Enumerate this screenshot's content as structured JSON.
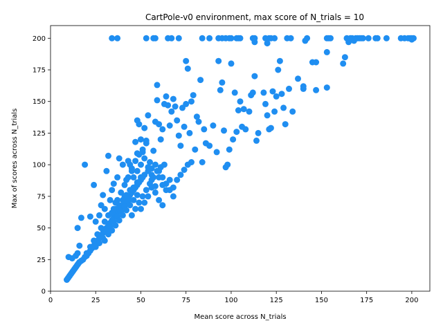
{
  "chart_data": {
    "type": "scatter",
    "title": "CartPole-v0 environment, max score of N_trials = 10",
    "xlabel": "Mean score across N_trials",
    "ylabel": "Max of scores across N_trials",
    "xlim": [
      0,
      210
    ],
    "ylim": [
      0,
      210
    ],
    "xticks": [
      0,
      25,
      50,
      75,
      100,
      125,
      150,
      175,
      200
    ],
    "yticks": [
      0,
      25,
      50,
      75,
      100,
      125,
      150,
      175,
      200
    ],
    "grid": false,
    "marker_color": "#1f8ef1",
    "series": [
      {
        "points": [
          [
            9,
            9
          ],
          [
            9.5,
            10
          ],
          [
            10,
            11
          ],
          [
            10.5,
            12
          ],
          [
            11,
            13
          ],
          [
            11.5,
            14
          ],
          [
            12,
            15
          ],
          [
            12.5,
            16
          ],
          [
            13,
            17
          ],
          [
            13.5,
            18
          ],
          [
            14,
            19
          ],
          [
            14.5,
            20
          ],
          [
            15,
            21
          ],
          [
            15.5,
            22
          ],
          [
            16,
            23
          ],
          [
            17,
            24
          ],
          [
            18,
            25
          ],
          [
            19,
            27
          ],
          [
            20,
            28
          ],
          [
            21,
            30
          ],
          [
            22,
            32
          ],
          [
            23,
            34
          ],
          [
            24,
            36
          ],
          [
            25,
            38
          ],
          [
            26,
            40
          ],
          [
            27,
            42
          ],
          [
            28,
            44
          ],
          [
            29,
            46
          ],
          [
            30,
            48
          ],
          [
            31,
            50
          ],
          [
            32,
            52
          ],
          [
            33,
            54
          ],
          [
            34,
            56
          ],
          [
            35,
            58
          ],
          [
            36,
            60
          ],
          [
            37,
            62
          ],
          [
            38,
            64
          ],
          [
            39,
            66
          ],
          [
            40,
            68
          ],
          [
            41,
            70
          ],
          [
            42,
            72
          ],
          [
            43,
            74
          ],
          [
            44,
            76
          ],
          [
            45,
            78
          ],
          [
            46,
            80
          ],
          [
            47,
            82
          ],
          [
            48,
            84
          ],
          [
            49,
            86
          ],
          [
            50,
            88
          ],
          [
            51,
            90
          ],
          [
            10,
            27
          ],
          [
            12,
            26
          ],
          [
            14,
            28
          ],
          [
            15,
            30
          ],
          [
            16,
            36
          ],
          [
            15,
            50
          ],
          [
            17,
            58
          ],
          [
            19,
            100
          ],
          [
            22,
            59
          ],
          [
            24,
            84
          ],
          [
            25,
            55
          ],
          [
            27,
            60
          ],
          [
            28,
            68
          ],
          [
            29,
            76
          ],
          [
            30,
            65
          ],
          [
            31,
            95
          ],
          [
            32,
            107
          ],
          [
            33,
            72
          ],
          [
            34,
            80
          ],
          [
            35,
            85
          ],
          [
            36,
            70
          ],
          [
            37,
            90
          ],
          [
            38,
            105
          ],
          [
            40,
            100
          ],
          [
            41,
            75
          ],
          [
            42,
            88
          ],
          [
            43,
            103
          ],
          [
            45,
            95
          ],
          [
            46,
            80
          ],
          [
            47,
            118
          ],
          [
            48,
            109
          ],
          [
            48,
            135
          ],
          [
            49,
            132
          ],
          [
            50,
            120
          ],
          [
            51,
            110
          ],
          [
            52,
            129
          ],
          [
            53,
            119
          ],
          [
            54,
            139
          ],
          [
            55,
            102
          ],
          [
            56,
            92
          ],
          [
            57,
            111
          ],
          [
            58,
            134
          ],
          [
            59,
            151
          ],
          [
            59,
            163
          ],
          [
            60,
            132
          ],
          [
            61,
            120
          ],
          [
            62,
            128
          ],
          [
            63,
            148
          ],
          [
            64,
            154
          ],
          [
            65,
            147
          ],
          [
            66,
            131
          ],
          [
            67,
            142
          ],
          [
            68,
            152
          ],
          [
            69,
            146
          ],
          [
            70,
            135
          ],
          [
            71,
            123
          ],
          [
            72,
            115
          ],
          [
            73,
            145
          ],
          [
            74,
            130
          ],
          [
            75,
            148
          ],
          [
            75,
            182
          ],
          [
            76,
            176
          ],
          [
            77,
            125
          ],
          [
            78,
            150
          ],
          [
            79,
            155
          ],
          [
            80,
            112
          ],
          [
            81,
            138
          ],
          [
            82,
            134
          ],
          [
            83,
            167
          ],
          [
            84,
            102
          ],
          [
            85,
            128
          ],
          [
            86,
            117
          ],
          [
            88,
            115
          ],
          [
            90,
            131
          ],
          [
            92,
            110
          ],
          [
            93,
            182
          ],
          [
            94,
            159
          ],
          [
            95,
            165
          ],
          [
            96,
            127
          ],
          [
            97,
            98
          ],
          [
            98,
            100
          ],
          [
            99,
            112
          ],
          [
            100,
            180
          ],
          [
            101,
            120
          ],
          [
            102,
            157
          ],
          [
            103,
            126
          ],
          [
            104,
            143
          ],
          [
            105,
            150
          ],
          [
            106,
            130
          ],
          [
            107,
            144
          ],
          [
            108,
            128
          ],
          [
            110,
            142
          ],
          [
            111,
            155
          ],
          [
            112,
            157
          ],
          [
            113,
            170
          ],
          [
            114,
            119
          ],
          [
            115,
            125
          ],
          [
            118,
            157
          ],
          [
            119,
            148
          ],
          [
            120,
            139
          ],
          [
            121,
            128
          ],
          [
            122,
            129
          ],
          [
            123,
            158
          ],
          [
            124,
            142
          ],
          [
            125,
            154
          ],
          [
            126,
            175
          ],
          [
            127,
            182
          ],
          [
            128,
            156
          ],
          [
            129,
            145
          ],
          [
            130,
            132
          ],
          [
            132,
            160
          ],
          [
            134,
            142
          ],
          [
            137,
            168
          ],
          [
            140,
            162
          ],
          [
            140,
            160
          ],
          [
            145,
            181
          ],
          [
            147,
            181
          ],
          [
            147,
            159
          ],
          [
            153,
            161
          ],
          [
            153,
            189
          ],
          [
            162,
            180
          ],
          [
            163,
            185
          ],
          [
            34,
            200
          ],
          [
            37,
            200
          ],
          [
            53,
            200
          ],
          [
            57,
            200
          ],
          [
            58,
            200
          ],
          [
            65,
            200
          ],
          [
            67,
            200
          ],
          [
            71,
            200
          ],
          [
            84,
            200
          ],
          [
            88,
            200
          ],
          [
            93,
            200
          ],
          [
            95,
            200
          ],
          [
            97,
            200
          ],
          [
            99,
            200
          ],
          [
            100,
            200
          ],
          [
            103,
            200
          ],
          [
            104,
            200
          ],
          [
            105,
            200
          ],
          [
            112,
            200
          ],
          [
            113,
            197
          ],
          [
            113,
            200
          ],
          [
            119,
            200
          ],
          [
            120,
            196
          ],
          [
            121,
            200
          ],
          [
            122,
            200
          ],
          [
            124,
            200
          ],
          [
            131,
            200
          ],
          [
            133,
            200
          ],
          [
            141,
            198
          ],
          [
            142,
            200
          ],
          [
            153,
            200
          ],
          [
            154,
            200
          ],
          [
            155,
            200
          ],
          [
            164,
            200
          ],
          [
            165,
            197
          ],
          [
            166,
            200
          ],
          [
            167,
            200
          ],
          [
            168,
            198
          ],
          [
            169,
            200
          ],
          [
            170,
            200
          ],
          [
            171,
            200
          ],
          [
            172,
            200
          ],
          [
            173,
            200
          ],
          [
            176,
            200
          ],
          [
            180,
            200
          ],
          [
            181,
            200
          ],
          [
            186,
            200
          ],
          [
            194,
            200
          ],
          [
            196,
            200
          ],
          [
            198,
            200
          ],
          [
            199,
            200
          ],
          [
            200,
            199
          ],
          [
            200,
            200
          ],
          [
            201,
            200
          ],
          [
            20,
            30
          ],
          [
            22,
            35
          ],
          [
            24,
            40
          ],
          [
            26,
            45
          ],
          [
            28,
            50
          ],
          [
            30,
            55
          ],
          [
            32,
            60
          ],
          [
            34,
            62
          ],
          [
            36,
            65
          ],
          [
            38,
            68
          ],
          [
            40,
            72
          ],
          [
            42,
            76
          ],
          [
            44,
            80
          ],
          [
            46,
            82
          ],
          [
            48,
            86
          ],
          [
            50,
            90
          ],
          [
            52,
            92
          ],
          [
            54,
            95
          ],
          [
            56,
            97
          ],
          [
            58,
            100
          ],
          [
            60,
            95
          ],
          [
            62,
            90
          ],
          [
            64,
            85
          ],
          [
            66,
            80
          ],
          [
            68,
            75
          ],
          [
            70,
            88
          ],
          [
            72,
            92
          ],
          [
            74,
            96
          ],
          [
            76,
            100
          ],
          [
            78,
            102
          ],
          [
            25,
            35
          ],
          [
            27,
            38
          ],
          [
            29,
            42
          ],
          [
            31,
            47
          ],
          [
            33,
            51
          ],
          [
            35,
            55
          ],
          [
            37,
            59
          ],
          [
            39,
            63
          ],
          [
            41,
            67
          ],
          [
            43,
            71
          ],
          [
            45,
            60
          ],
          [
            47,
            65
          ],
          [
            49,
            70
          ],
          [
            51,
            75
          ],
          [
            53,
            80
          ],
          [
            55,
            85
          ],
          [
            57,
            90
          ],
          [
            59,
            95
          ],
          [
            61,
            98
          ],
          [
            63,
            100
          ],
          [
            30,
            40
          ],
          [
            32,
            45
          ],
          [
            34,
            48
          ],
          [
            36,
            52
          ],
          [
            38,
            56
          ],
          [
            40,
            60
          ],
          [
            42,
            64
          ],
          [
            44,
            68
          ],
          [
            46,
            72
          ],
          [
            48,
            76
          ],
          [
            50,
            65
          ],
          [
            52,
            70
          ],
          [
            54,
            75
          ],
          [
            56,
            82
          ],
          [
            58,
            78
          ],
          [
            60,
            72
          ],
          [
            62,
            68
          ],
          [
            64,
            80
          ],
          [
            66,
            88
          ],
          [
            68,
            82
          ],
          [
            44,
            100
          ],
          [
            46,
            90
          ],
          [
            48,
            95
          ],
          [
            50,
            100
          ],
          [
            52,
            105
          ],
          [
            54,
            98
          ],
          [
            56,
            88
          ],
          [
            58,
            83
          ],
          [
            60,
            90
          ],
          [
            62,
            84
          ],
          [
            35,
            65
          ],
          [
            37,
            72
          ],
          [
            39,
            78
          ],
          [
            41,
            84
          ],
          [
            43,
            90
          ],
          [
            45,
            97
          ],
          [
            47,
            103
          ],
          [
            49,
            108
          ],
          [
            51,
            112
          ],
          [
            53,
            117
          ]
        ]
      }
    ]
  }
}
